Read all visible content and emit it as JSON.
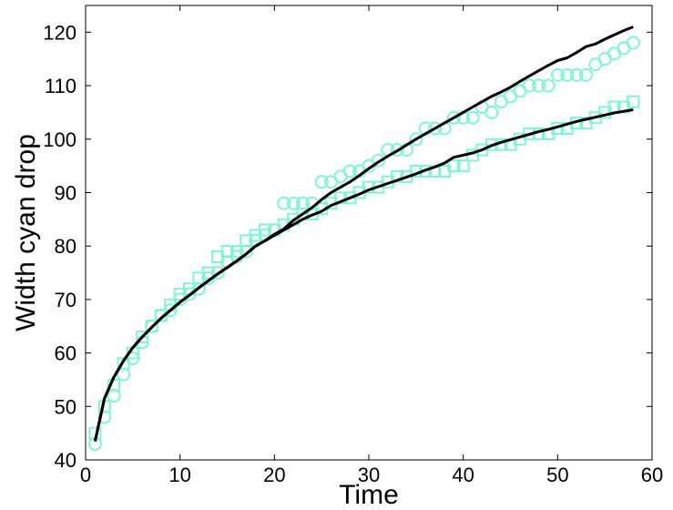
{
  "chart_data": {
    "type": "line",
    "title": "",
    "xlabel": "Time",
    "ylabel": "Width cyan drop",
    "xlim": [
      0,
      60
    ],
    "ylim": [
      40,
      125
    ],
    "xticks": [
      0,
      10,
      20,
      30,
      40,
      50,
      60
    ],
    "yticks": [
      40,
      50,
      60,
      70,
      80,
      90,
      100,
      110,
      120
    ],
    "grid": false,
    "legend": "none",
    "marker_color": "#7ff5d6",
    "line_color": "#000000",
    "series": [
      {
        "marker": "circle",
        "x": [
          1,
          2,
          3,
          4,
          5,
          6,
          7,
          8,
          9,
          10,
          11,
          12,
          13,
          14,
          15,
          16,
          17,
          18,
          19,
          20,
          21,
          22,
          23,
          24,
          25,
          26,
          27,
          28,
          29,
          30,
          31,
          32,
          33,
          34,
          35,
          36,
          37,
          38,
          39,
          40,
          41,
          42,
          43,
          44,
          45,
          46,
          47,
          48,
          49,
          50,
          51,
          52,
          53,
          54,
          55,
          56,
          57,
          58
        ],
        "y": [
          43,
          48,
          52,
          56,
          59,
          62,
          65,
          67,
          68,
          70,
          71,
          72,
          74,
          75,
          77,
          78,
          79,
          81,
          82,
          83,
          88,
          88,
          88,
          88,
          92,
          92,
          93,
          94,
          94,
          95,
          96,
          98,
          98,
          98,
          100,
          102,
          102,
          102,
          104,
          104,
          104,
          106,
          105,
          107,
          108,
          109,
          110,
          110,
          110,
          112,
          112,
          112,
          112,
          114,
          115,
          116,
          117,
          118
        ]
      },
      {
        "marker": "square",
        "x": [
          1,
          2,
          3,
          4,
          5,
          6,
          7,
          8,
          9,
          10,
          11,
          12,
          13,
          14,
          15,
          16,
          17,
          18,
          19,
          20,
          21,
          22,
          23,
          24,
          25,
          26,
          27,
          28,
          29,
          30,
          31,
          32,
          33,
          34,
          35,
          36,
          37,
          38,
          39,
          40,
          41,
          42,
          43,
          44,
          45,
          46,
          47,
          48,
          49,
          50,
          51,
          52,
          53,
          54,
          55,
          56,
          57,
          58
        ],
        "y": [
          45,
          50,
          54,
          58,
          60,
          63,
          65,
          67,
          69,
          71,
          72,
          74,
          75,
          78,
          79,
          79,
          81,
          82,
          83,
          83,
          84,
          85,
          86,
          86,
          87,
          88,
          89,
          89,
          90,
          91,
          91,
          92,
          93,
          93,
          94,
          94,
          94,
          94,
          95,
          95,
          97,
          98,
          99,
          99,
          99,
          100,
          101,
          101,
          101,
          102,
          102,
          103,
          103,
          104,
          105,
          106,
          106,
          107
        ]
      },
      {
        "marker": "none",
        "x": [
          1,
          2,
          3,
          4,
          5,
          6,
          7,
          8,
          9,
          10,
          11,
          12,
          13,
          14,
          15,
          16,
          17,
          18,
          19,
          20,
          21,
          22,
          23,
          24,
          25,
          26,
          27,
          28,
          29,
          30,
          31,
          32,
          33,
          34,
          35,
          36,
          37,
          38,
          39,
          40,
          41,
          42,
          43,
          44,
          45,
          46,
          47,
          48,
          49,
          50,
          51,
          52,
          53,
          54,
          55,
          56,
          57,
          58
        ],
        "y": [
          43.5,
          51.5,
          55.5,
          58.5,
          61,
          63,
          64.8,
          66.5,
          68,
          69.5,
          70.8,
          72.2,
          73.5,
          74.8,
          76,
          77.2,
          78.5,
          80,
          81,
          82.2,
          83.2,
          84.8,
          86,
          87.2,
          88.7,
          90,
          91,
          92,
          93.2,
          94.5,
          95.7,
          96.8,
          97.8,
          98.9,
          100,
          101,
          102,
          103,
          104,
          105,
          106,
          107,
          108,
          108.8,
          109.7,
          110.8,
          111.8,
          112.8,
          113.8,
          114.7,
          115.2,
          116.2,
          117.3,
          117.8,
          118.7,
          119.5,
          120.3,
          121
        ]
      },
      {
        "marker": "none",
        "x": [
          1,
          2,
          3,
          4,
          5,
          6,
          7,
          8,
          9,
          10,
          11,
          12,
          13,
          14,
          15,
          16,
          17,
          18,
          19,
          20,
          21,
          22,
          23,
          24,
          25,
          26,
          27,
          28,
          29,
          30,
          31,
          32,
          33,
          34,
          35,
          36,
          37,
          38,
          39,
          40,
          41,
          42,
          43,
          44,
          45,
          46,
          47,
          48,
          49,
          50,
          51,
          52,
          53,
          54,
          55,
          56,
          57,
          58
        ],
        "y": [
          43.5,
          51.5,
          55.5,
          58.5,
          61,
          63,
          64.8,
          66.5,
          68,
          69.5,
          70.8,
          72.2,
          73.5,
          74.8,
          76,
          77.2,
          78.5,
          80,
          81,
          82,
          83,
          84,
          85,
          85.8,
          86.5,
          87.6,
          88.3,
          89,
          89.7,
          90.5,
          91.1,
          91.7,
          92.3,
          92.9,
          93.5,
          94.2,
          94.8,
          95.5,
          96.6,
          97,
          97.4,
          98,
          98.8,
          99.4,
          99.9,
          100.4,
          100.9,
          101.4,
          101.8,
          102.3,
          102.8,
          103.3,
          103.7,
          104.1,
          104.5,
          104.9,
          105.2,
          105.5
        ]
      }
    ]
  }
}
